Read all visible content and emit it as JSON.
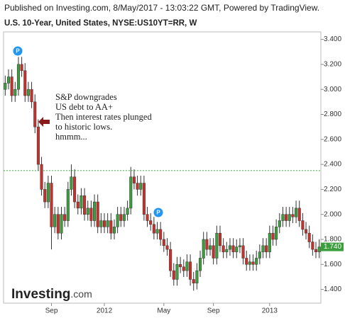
{
  "chart_data": {
    "type": "candlestick",
    "header": "Published on Investing.com, 8/May/2017 - 13:03:22 GMT, Powered by TradingView.",
    "title": "U.S. 10-Year, United States, NYSE:US10YT=RR, W",
    "annotation": [
      "S&P downgrades",
      "US debt to AA+",
      "Then interest rates plunged",
      "to historic lows.",
      "hmmm..."
    ],
    "logo": [
      "Investing",
      ".com"
    ],
    "markers": [
      "P",
      "P"
    ],
    "last_price": {
      "value": 1.74,
      "label": "1.740"
    },
    "ref_line": 2.35,
    "up_color": "#3c9d3c",
    "down_color": "#c8302c",
    "grid": false,
    "ylim": [
      1.29,
      3.46
    ],
    "yticks": [
      {
        "value": 1.4,
        "label": "1.400"
      },
      {
        "value": 1.6,
        "label": "1.600"
      },
      {
        "value": 1.8,
        "label": "1.800"
      },
      {
        "value": 2.0,
        "label": "2.000"
      },
      {
        "value": 2.2,
        "label": "2.200"
      },
      {
        "value": 2.4,
        "label": "2.400"
      },
      {
        "value": 2.6,
        "label": "2.600"
      },
      {
        "value": 2.8,
        "label": "2.800"
      },
      {
        "value": 3.0,
        "label": "3.000"
      },
      {
        "value": 3.2,
        "label": "3.200"
      },
      {
        "value": 3.4,
        "label": "3.400"
      }
    ],
    "categories": [
      null,
      null,
      null,
      null,
      null,
      null,
      null,
      null,
      null,
      null,
      null,
      null,
      null,
      null,
      "Sep",
      null,
      null,
      null,
      null,
      null,
      null,
      null,
      null,
      null,
      null,
      null,
      null,
      null,
      null,
      null,
      "2012",
      null,
      null,
      null,
      null,
      null,
      null,
      null,
      null,
      null,
      null,
      null,
      null,
      null,
      null,
      null,
      null,
      null,
      "May",
      null,
      null,
      null,
      null,
      null,
      null,
      null,
      null,
      null,
      null,
      null,
      null,
      null,
      null,
      "Sep",
      null,
      null,
      null,
      null,
      null,
      null,
      null,
      null,
      null,
      null,
      null,
      null,
      null,
      null,
      null,
      null,
      "2013",
      null,
      null,
      null,
      null,
      null,
      null,
      null,
      null,
      null,
      null,
      null,
      null,
      null,
      null,
      null
    ],
    "open": [
      3.0,
      3.05,
      3.1,
      2.95,
      3.0,
      3.2,
      3.15,
      2.95,
      3.0,
      2.9,
      2.7,
      2.4,
      2.2,
      2.1,
      2.25,
      1.9,
      2.0,
      1.85,
      2.0,
      1.95,
      2.2,
      2.3,
      2.1,
      2.05,
      2.15,
      2.0,
      2.05,
      1.95,
      2.1,
      1.9,
      1.95,
      1.9,
      1.95,
      1.85,
      1.9,
      2.0,
      1.95,
      2.0,
      2.05,
      2.3,
      2.25,
      2.2,
      2.25,
      2.0,
      1.95,
      1.92,
      1.85,
      1.88,
      1.8,
      1.75,
      1.72,
      1.55,
      1.48,
      1.6,
      1.58,
      1.55,
      1.62,
      1.48,
      1.45,
      1.55,
      1.65,
      1.8,
      1.72,
      1.75,
      1.65,
      1.85,
      1.75,
      1.7,
      1.72,
      1.75,
      1.7,
      1.74,
      1.75,
      1.65,
      1.6,
      1.62,
      1.6,
      1.65,
      1.7,
      1.75,
      1.7,
      1.85,
      1.8,
      1.9,
      1.95,
      2.0,
      1.95,
      2.0,
      1.98,
      2.05,
      1.95,
      1.88,
      1.85,
      1.78,
      1.72,
      1.7
    ],
    "high": [
      3.11,
      3.16,
      3.16,
      3.06,
      3.26,
      3.26,
      3.21,
      3.06,
      3.06,
      2.96,
      2.76,
      2.46,
      2.26,
      2.31,
      2.31,
      2.06,
      2.06,
      2.06,
      2.06,
      2.26,
      2.4,
      2.36,
      2.16,
      2.21,
      2.21,
      2.11,
      2.11,
      2.16,
      2.16,
      2.01,
      2.01,
      2.01,
      2.01,
      1.96,
      2.06,
      2.06,
      2.06,
      2.11,
      2.38,
      2.36,
      2.31,
      2.31,
      2.31,
      2.06,
      2.01,
      1.98,
      1.94,
      1.94,
      1.86,
      1.81,
      1.78,
      1.61,
      1.66,
      1.66,
      1.64,
      1.68,
      1.68,
      1.54,
      1.61,
      1.71,
      1.86,
      1.86,
      1.81,
      1.81,
      1.91,
      1.91,
      1.81,
      1.78,
      1.81,
      1.81,
      1.8,
      1.81,
      1.81,
      1.71,
      1.68,
      1.68,
      1.71,
      1.76,
      1.81,
      1.81,
      1.91,
      1.91,
      1.96,
      2.01,
      2.06,
      2.06,
      2.06,
      2.06,
      2.11,
      2.11,
      2.01,
      1.94,
      1.91,
      1.84,
      1.78,
      1.8
    ],
    "low": [
      2.95,
      3.0,
      2.9,
      2.9,
      2.95,
      3.1,
      2.9,
      2.9,
      2.85,
      2.65,
      2.35,
      2.15,
      2.05,
      2.05,
      1.72,
      1.85,
      1.8,
      1.8,
      1.9,
      1.9,
      2.15,
      2.05,
      2.0,
      2.0,
      1.95,
      1.95,
      1.9,
      1.9,
      1.85,
      1.85,
      1.85,
      1.85,
      1.8,
      1.8,
      1.85,
      1.9,
      1.9,
      1.95,
      2.0,
      2.2,
      2.15,
      2.15,
      1.95,
      1.9,
      1.87,
      1.8,
      1.8,
      1.75,
      1.7,
      1.67,
      1.5,
      1.43,
      1.43,
      1.53,
      1.5,
      1.5,
      1.43,
      1.39,
      1.4,
      1.5,
      1.6,
      1.67,
      1.67,
      1.6,
      1.6,
      1.7,
      1.65,
      1.65,
      1.67,
      1.65,
      1.65,
      1.69,
      1.6,
      1.55,
      1.55,
      1.55,
      1.55,
      1.6,
      1.65,
      1.65,
      1.65,
      1.75,
      1.75,
      1.85,
      1.9,
      1.9,
      1.9,
      1.93,
      1.93,
      1.9,
      1.83,
      1.8,
      1.73,
      1.67,
      1.65,
      1.65
    ],
    "close": [
      3.05,
      3.1,
      2.95,
      3.0,
      3.2,
      3.15,
      2.95,
      3.0,
      2.9,
      2.7,
      2.4,
      2.2,
      2.1,
      2.25,
      1.9,
      2.0,
      1.85,
      2.0,
      1.95,
      2.2,
      2.3,
      2.1,
      2.05,
      2.15,
      2.0,
      2.05,
      1.95,
      2.1,
      1.9,
      1.95,
      1.9,
      1.95,
      1.85,
      1.9,
      2.0,
      1.95,
      2.0,
      2.05,
      2.3,
      2.25,
      2.2,
      2.25,
      2.0,
      1.95,
      1.92,
      1.85,
      1.88,
      1.8,
      1.75,
      1.72,
      1.55,
      1.48,
      1.6,
      1.58,
      1.55,
      1.62,
      1.48,
      1.45,
      1.55,
      1.65,
      1.8,
      1.72,
      1.75,
      1.65,
      1.85,
      1.75,
      1.7,
      1.72,
      1.75,
      1.7,
      1.74,
      1.75,
      1.65,
      1.6,
      1.62,
      1.6,
      1.65,
      1.7,
      1.75,
      1.7,
      1.85,
      1.8,
      1.9,
      1.95,
      2.0,
      1.95,
      2.0,
      1.98,
      2.05,
      1.95,
      1.88,
      1.85,
      1.78,
      1.72,
      1.7,
      1.74
    ]
  }
}
